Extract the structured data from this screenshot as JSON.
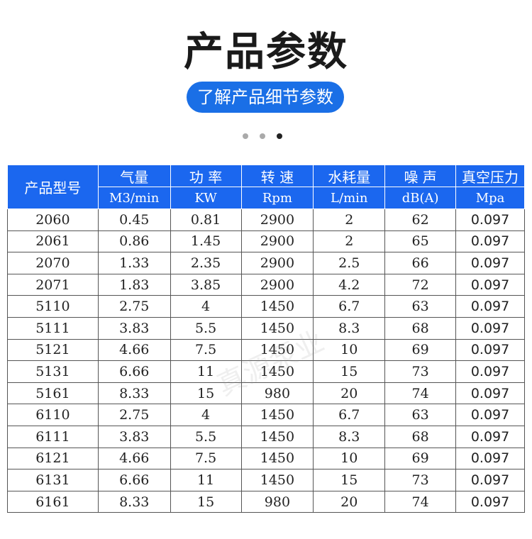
{
  "title": "产品参数",
  "subtitle_button": "了解产品细节参数",
  "carousel": {
    "count": 3,
    "active": 3
  },
  "watermark": "真源泵业",
  "table": {
    "model_header": "产品型号",
    "headers": [
      {
        "name": "气量",
        "unit": "M3/min"
      },
      {
        "name": "功 率",
        "unit": "KW"
      },
      {
        "name": "转 速",
        "unit": "Rpm"
      },
      {
        "name": "水耗量",
        "unit": "L/min"
      },
      {
        "name": "噪 声",
        "unit": "dB(A)"
      },
      {
        "name": "真空压力",
        "unit": "Mpa"
      }
    ],
    "rows": [
      [
        "2060",
        "0.45",
        "0.81",
        "2900",
        "2",
        "62",
        "0.097"
      ],
      [
        "2061",
        "0.86",
        "1.45",
        "2900",
        "2",
        "65",
        "0.097"
      ],
      [
        "2070",
        "1.33",
        "2.35",
        "2900",
        "2.5",
        "66",
        "0.097"
      ],
      [
        "2071",
        "1.83",
        "3.85",
        "2900",
        "4.2",
        "72",
        "0.097"
      ],
      [
        "5110",
        "2.75",
        "4",
        "1450",
        "6.7",
        "63",
        "0.097"
      ],
      [
        "5111",
        "3.83",
        "5.5",
        "1450",
        "8.3",
        "68",
        "0.097"
      ],
      [
        "5121",
        "4.66",
        "7.5",
        "1450",
        "10",
        "69",
        "0.097"
      ],
      [
        "5131",
        "6.66",
        "11",
        "1450",
        "15",
        "73",
        "0.097"
      ],
      [
        "5161",
        "8.33",
        "15",
        "980",
        "20",
        "74",
        "0.097"
      ],
      [
        "6110",
        "2.75",
        "4",
        "1450",
        "6.7",
        "63",
        "0.097"
      ],
      [
        "6111",
        "3.83",
        "5.5",
        "1450",
        "8.3",
        "68",
        "0.097"
      ],
      [
        "6121",
        "4.66",
        "7.5",
        "1450",
        "10",
        "69",
        "0.097"
      ],
      [
        "6131",
        "6.66",
        "11",
        "1450",
        "15",
        "73",
        "0.097"
      ],
      [
        "6161",
        "8.33",
        "15",
        "980",
        "20",
        "74",
        "0.097"
      ]
    ]
  }
}
